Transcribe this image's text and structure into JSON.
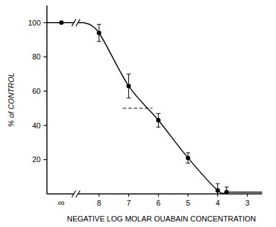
{
  "chart_data": {
    "type": "line",
    "x_label": "NEGATIVE LOG MOLAR OUABAIN CONCENTRATION",
    "y_label": "% of CONTROL",
    "xlim": [
      8.5,
      2.5
    ],
    "xticks": [
      8,
      7,
      6,
      5,
      4,
      3
    ],
    "ylim": [
      0,
      110
    ],
    "yticks": [
      20,
      40,
      60,
      80,
      100
    ],
    "control": {
      "label": "∞",
      "value": 100
    },
    "series": [
      {
        "name": "ouabain",
        "color": "#000000",
        "marker": "circle",
        "line_style": "solid",
        "x": [
          8,
          7,
          6,
          5,
          4,
          3.7
        ],
        "values": [
          94,
          63,
          43,
          21,
          2,
          1
        ],
        "errors": [
          5,
          7,
          4,
          3,
          4,
          3
        ]
      }
    ],
    "reference_line": {
      "y": 50,
      "x": [
        7.2,
        6.2
      ],
      "line_style": "dashed"
    }
  }
}
